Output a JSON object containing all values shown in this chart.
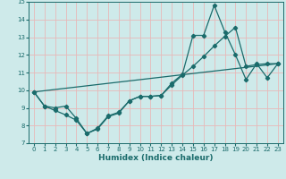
{
  "xlabel": "Humidex (Indice chaleur)",
  "xlim": [
    -0.5,
    23.5
  ],
  "ylim": [
    7,
    15
  ],
  "xticks": [
    0,
    1,
    2,
    3,
    4,
    5,
    6,
    7,
    8,
    9,
    10,
    11,
    12,
    13,
    14,
    15,
    16,
    17,
    18,
    19,
    20,
    21,
    22,
    23
  ],
  "yticks": [
    7,
    8,
    9,
    10,
    11,
    12,
    13,
    14,
    15
  ],
  "bg_color": "#ceeaea",
  "line_color": "#1a6b6b",
  "grid_color": "#e8b8b8",
  "line1_x": [
    0,
    1,
    2,
    3,
    4,
    5,
    6,
    7,
    8,
    9,
    10,
    11,
    12,
    13,
    14,
    15,
    16,
    17,
    18,
    19,
    20,
    21,
    22,
    23
  ],
  "line1_y": [
    9.9,
    9.1,
    8.85,
    8.6,
    8.3,
    7.55,
    7.8,
    8.5,
    8.7,
    9.4,
    9.65,
    9.65,
    9.7,
    10.4,
    10.9,
    13.1,
    13.1,
    14.8,
    13.3,
    12.0,
    10.6,
    11.5,
    10.7,
    11.5
  ],
  "line2_x": [
    0,
    1,
    2,
    3,
    4,
    5,
    6,
    7,
    8,
    9,
    10,
    11,
    12,
    13,
    14,
    15,
    16,
    17,
    18,
    19,
    20,
    21,
    22,
    23
  ],
  "line2_y": [
    9.9,
    9.1,
    9.0,
    9.1,
    8.4,
    7.55,
    7.85,
    8.55,
    8.75,
    9.4,
    9.65,
    9.65,
    9.7,
    10.3,
    10.85,
    11.35,
    11.9,
    12.5,
    13.05,
    13.55,
    11.35,
    11.45,
    11.5,
    11.5
  ],
  "line3_x": [
    0,
    23
  ],
  "line3_y": [
    9.9,
    11.5
  ]
}
